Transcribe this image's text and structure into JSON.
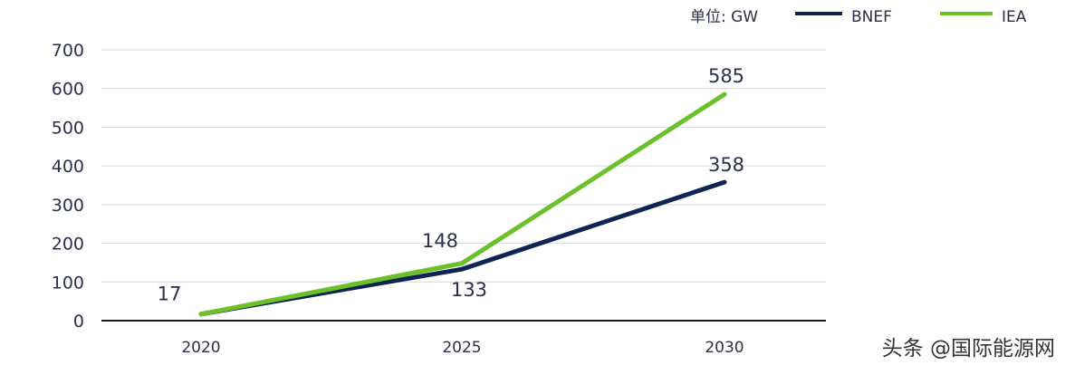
{
  "chart_data": {
    "type": "line",
    "categories": [
      "2020",
      "2025",
      "2030"
    ],
    "series": [
      {
        "name": "BNEF",
        "values": [
          17,
          133,
          358
        ],
        "color": "#0f2451",
        "labels": [
          "",
          "133",
          "358"
        ]
      },
      {
        "name": "IEA",
        "values": [
          17,
          148,
          585
        ],
        "color": "#6cc12a",
        "labels": [
          "17",
          "148",
          "585"
        ]
      }
    ],
    "unit_label": "单位: GW",
    "ylim": [
      0,
      700
    ],
    "yticks": [
      "0",
      "100",
      "200",
      "300",
      "400",
      "500",
      "600",
      "700"
    ],
    "grid": true,
    "legend_position": "top-right"
  },
  "watermark": "头条 @国际能源网"
}
